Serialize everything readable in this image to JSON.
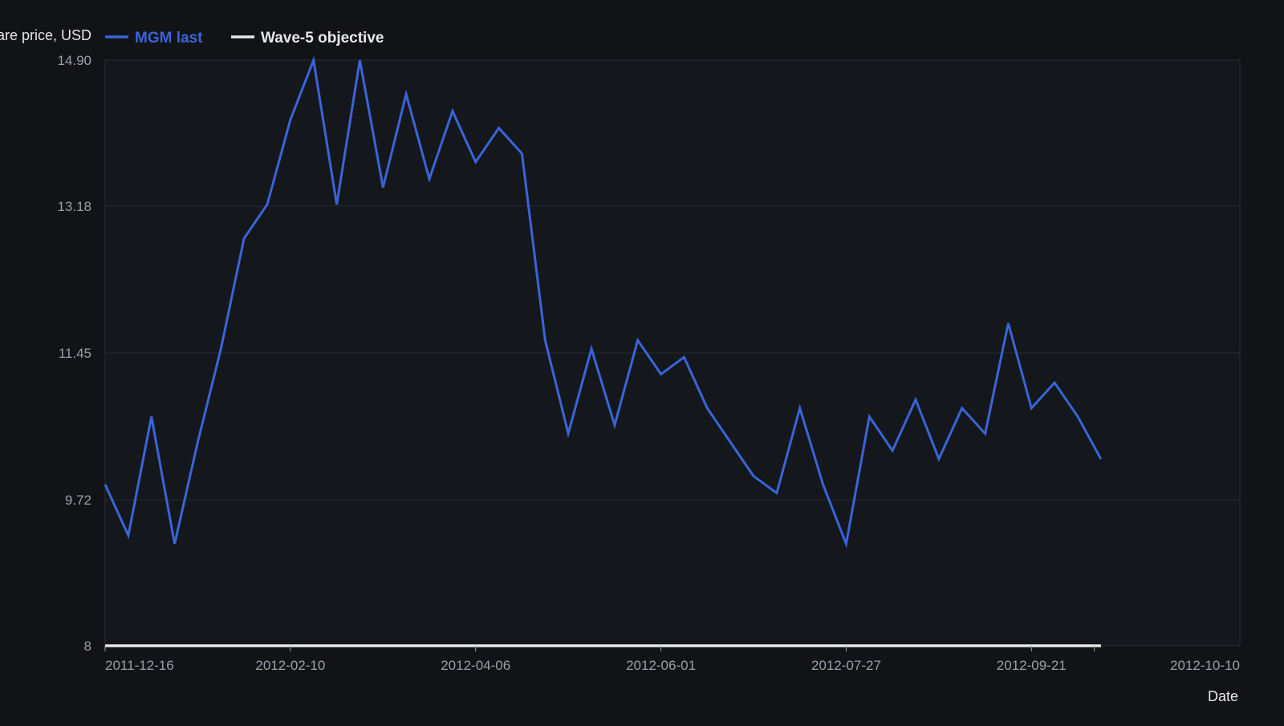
{
  "chart_data": {
    "type": "line",
    "xlabel": "Date",
    "ylabel": "Share price, USD",
    "ylim": [
      8,
      14.9
    ],
    "y_ticks": [
      "14.90",
      "13.18",
      "11.45",
      "9.72",
      "8"
    ],
    "y_tick_values": [
      14.9,
      13.18,
      11.45,
      9.72,
      8
    ],
    "x_range": [
      "2011-12-16",
      "2012-11-23"
    ],
    "x_ticks": [
      "2011-12-16",
      "2012-02-10",
      "2012-04-06",
      "2012-06-01",
      "2012-07-27",
      "2012-09-21",
      "2012-10-10"
    ],
    "grid": true,
    "legend_position": "top-left",
    "series": [
      {
        "name": "MGM last",
        "color": "#3a64d8",
        "x": [
          "2011-12-16",
          "2011-12-23",
          "2011-12-30",
          "2012-01-06",
          "2012-01-13",
          "2012-01-20",
          "2012-01-27",
          "2012-02-03",
          "2012-02-10",
          "2012-02-17",
          "2012-02-24",
          "2012-03-02",
          "2012-03-09",
          "2012-03-16",
          "2012-03-23",
          "2012-03-30",
          "2012-04-06",
          "2012-04-13",
          "2012-04-20",
          "2012-04-27",
          "2012-05-04",
          "2012-05-11",
          "2012-05-18",
          "2012-05-25",
          "2012-06-01",
          "2012-06-08",
          "2012-06-15",
          "2012-06-22",
          "2012-06-29",
          "2012-07-06",
          "2012-07-13",
          "2012-07-20",
          "2012-07-27",
          "2012-08-03",
          "2012-08-10",
          "2012-08-17",
          "2012-08-24",
          "2012-08-31",
          "2012-09-07",
          "2012-09-14",
          "2012-09-21",
          "2012-09-28",
          "2012-10-05",
          "2012-10-12"
        ],
        "values": [
          9.9,
          9.3,
          10.7,
          9.2,
          10.4,
          11.5,
          12.8,
          13.2,
          14.2,
          14.9,
          13.2,
          14.9,
          13.4,
          14.5,
          13.5,
          14.3,
          13.7,
          14.1,
          13.8,
          11.6,
          10.5,
          11.5,
          10.6,
          11.6,
          11.2,
          11.4,
          10.8,
          10.4,
          10.0,
          9.8,
          10.8,
          9.9,
          9.2,
          10.7,
          10.3,
          10.9,
          10.2,
          10.8,
          10.5,
          11.8,
          10.8,
          11.1,
          10.7,
          10.2
        ]
      },
      {
        "name": "Wave-5 objective",
        "color": "#e8e8e8",
        "x": [
          "2011-12-16",
          "2012-10-12"
        ],
        "values": [
          8,
          8
        ]
      }
    ]
  }
}
